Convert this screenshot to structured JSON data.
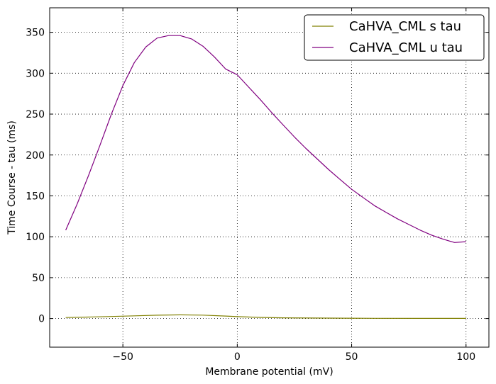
{
  "chart_data": {
    "type": "line",
    "title": "",
    "xlabel": "Membrane potential (mV)",
    "ylabel": "Time Course - tau (ms)",
    "xlim": [
      -82,
      110
    ],
    "ylim": [
      -35,
      380
    ],
    "xticks": [
      -50,
      0,
      50,
      100
    ],
    "xtick_labels": [
      "−50",
      "0",
      "50",
      "100"
    ],
    "yticks": [
      0,
      50,
      100,
      150,
      200,
      250,
      300,
      350
    ],
    "ytick_labels": [
      "0",
      "50",
      "100",
      "150",
      "200",
      "250",
      "300",
      "350"
    ],
    "grid": true,
    "legend_position": "top-right",
    "series": [
      {
        "name": "CaHVA_CML s tau",
        "color": "#808000",
        "x": [
          -75,
          -65,
          -55,
          -45,
          -35,
          -25,
          -15,
          -5,
          0,
          10,
          20,
          40,
          60,
          80,
          100
        ],
        "y": [
          1.2,
          1.8,
          2.5,
          3.3,
          4.1,
          4.5,
          4.2,
          3.0,
          2.3,
          1.4,
          0.9,
          0.5,
          0.3,
          0.2,
          0.15
        ]
      },
      {
        "name": "CaHVA_CML u tau",
        "color": "#800080",
        "x": [
          -75,
          -70,
          -65,
          -60,
          -55,
          -50,
          -45,
          -40,
          -35,
          -30,
          -25,
          -20,
          -15,
          -10,
          -5,
          0,
          5,
          10,
          15,
          20,
          25,
          30,
          35,
          40,
          45,
          50,
          55,
          60,
          65,
          70,
          75,
          80,
          85,
          90,
          95,
          100
        ],
        "y": [
          108,
          140,
          175,
          212,
          250,
          285,
          313,
          332,
          343,
          346,
          346,
          342,
          333,
          320,
          305,
          298,
          283,
          268,
          252,
          237,
          222,
          208,
          195,
          182,
          170,
          158,
          148,
          138,
          130,
          122,
          115,
          108,
          102,
          97,
          93,
          94
        ]
      }
    ]
  }
}
